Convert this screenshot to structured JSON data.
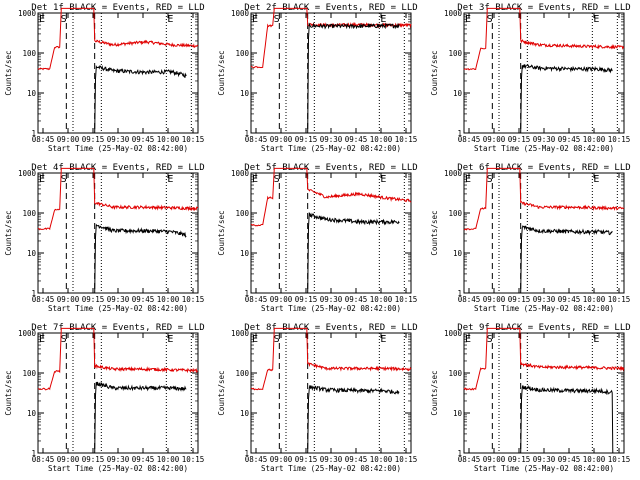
{
  "chart_data": {
    "type": "line",
    "time_axis": {
      "ticks": [
        "08:45",
        "09:00",
        "09:15",
        "09:30",
        "09:45",
        "10:00",
        "10:15"
      ],
      "xlabel": "Start Time (25-May-02 08:42:00)"
    },
    "y_axis": {
      "label": "Counts/sec",
      "scale": "log",
      "ylim": [
        1,
        1000
      ],
      "ticks": [
        "1",
        "10",
        "100",
        "1000"
      ]
    },
    "x_minutes_range": [
      0,
      96
    ],
    "vertical_markers": {
      "dashed_minutes": [
        17,
        34
      ],
      "dotted_minutes": [
        21,
        38,
        77,
        92
      ]
    },
    "event_marks": {
      "e_label": "E",
      "s_label": "S"
    },
    "colors": {
      "events": "#000000",
      "lld": "#e00000"
    },
    "panels": [
      {
        "title": "Det 1f BLACK = Events, RED = LLD",
        "e_marks_minutes": [
          0,
          77
        ],
        "s_mark_minute": 13,
        "lld": {
          "base": 40,
          "pre": 140,
          "post": [
            [
              34,
              200
            ],
            [
              45,
              160
            ],
            [
              65,
              190
            ],
            [
              80,
              160
            ],
            [
              96,
              150
            ]
          ]
        },
        "events": [
          [
            35,
            45
          ],
          [
            45,
            36
          ],
          [
            65,
            33
          ],
          [
            80,
            34
          ],
          [
            89,
            27
          ]
        ]
      },
      {
        "title": "Det 2f BLACK = Events, RED = LLD",
        "e_marks_minutes": [
          0,
          77
        ],
        "s_mark_minute": 13,
        "lld": {
          "base": 45,
          "pre": 480,
          "post": [
            [
              34,
              520
            ],
            [
              45,
              500
            ],
            [
              65,
              510
            ],
            [
              80,
              500
            ],
            [
              96,
              500
            ]
          ]
        },
        "events": [
          [
            35,
            480
          ],
          [
            45,
            470
          ],
          [
            65,
            470
          ],
          [
            80,
            480
          ],
          [
            89,
            480
          ]
        ]
      },
      {
        "title": "Det 3f BLACK = Events, RED = LLD",
        "e_marks_minutes": [
          0,
          77
        ],
        "s_mark_minute": 13,
        "lld": {
          "base": 40,
          "pre": 130,
          "post": [
            [
              34,
              200
            ],
            [
              45,
              160
            ],
            [
              65,
              150
            ],
            [
              80,
              145
            ],
            [
              96,
              140
            ]
          ]
        },
        "events": [
          [
            35,
            48
          ],
          [
            45,
            42
          ],
          [
            65,
            40
          ],
          [
            80,
            40
          ],
          [
            89,
            37
          ]
        ]
      },
      {
        "title": "Det 4f BLACK = Events, RED = LLD",
        "e_marks_minutes": [
          0,
          77
        ],
        "s_mark_minute": 13,
        "lld": {
          "base": 40,
          "pre": 120,
          "post": [
            [
              34,
              180
            ],
            [
              45,
              140
            ],
            [
              65,
              140
            ],
            [
              80,
              135
            ],
            [
              96,
              130
            ]
          ]
        },
        "events": [
          [
            35,
            50
          ],
          [
            45,
            36
          ],
          [
            65,
            36
          ],
          [
            80,
            34
          ],
          [
            89,
            28
          ]
        ]
      },
      {
        "title": "Det 5f BLACK = Events, RED = LLD",
        "e_marks_minutes": [
          0,
          77
        ],
        "s_mark_minute": 13,
        "lld": {
          "base": 50,
          "pre": 240,
          "post": [
            [
              34,
              380
            ],
            [
              45,
              250
            ],
            [
              65,
              300
            ],
            [
              80,
              240
            ],
            [
              96,
              200
            ]
          ]
        },
        "events": [
          [
            35,
            90
          ],
          [
            45,
            70
          ],
          [
            65,
            60
          ],
          [
            80,
            60
          ],
          [
            89,
            60
          ]
        ]
      },
      {
        "title": "Det 6f BLACK = Events, RED = LLD",
        "e_marks_minutes": [
          0,
          77
        ],
        "s_mark_minute": 13,
        "lld": {
          "base": 40,
          "pre": 130,
          "post": [
            [
              34,
              180
            ],
            [
              45,
              140
            ],
            [
              65,
              140
            ],
            [
              80,
              135
            ],
            [
              96,
              130
            ]
          ]
        },
        "events": [
          [
            35,
            45
          ],
          [
            45,
            36
          ],
          [
            65,
            34
          ],
          [
            80,
            34
          ],
          [
            89,
            32
          ]
        ]
      },
      {
        "title": "Det 7f BLACK = Events, RED = LLD",
        "e_marks_minutes": [
          0,
          77
        ],
        "s_mark_minute": 13,
        "lld": {
          "base": 40,
          "pre": 110,
          "post": [
            [
              34,
              150
            ],
            [
              45,
              125
            ],
            [
              65,
              125
            ],
            [
              80,
              120
            ],
            [
              96,
              115
            ]
          ]
        },
        "events": [
          [
            35,
            55
          ],
          [
            45,
            42
          ],
          [
            65,
            42
          ],
          [
            80,
            42
          ],
          [
            89,
            40
          ]
        ]
      },
      {
        "title": "Det 8f BLACK = Events, RED = LLD",
        "e_marks_minutes": [
          0,
          77
        ],
        "s_mark_minute": 13,
        "lld": {
          "base": 40,
          "pre": 120,
          "post": [
            [
              34,
              170
            ],
            [
              45,
              130
            ],
            [
              65,
              130
            ],
            [
              80,
              130
            ],
            [
              96,
              125
            ]
          ]
        },
        "events": [
          [
            35,
            45
          ],
          [
            45,
            38
          ],
          [
            65,
            36
          ],
          [
            80,
            36
          ],
          [
            89,
            33
          ]
        ]
      },
      {
        "title": "Det 9f BLACK = Events, RED = LLD",
        "e_marks_minutes": [
          0,
          77
        ],
        "s_mark_minute": 13,
        "lld": {
          "base": 40,
          "pre": 130,
          "post": [
            [
              34,
              170
            ],
            [
              45,
              140
            ],
            [
              65,
              140
            ],
            [
              80,
              135
            ],
            [
              96,
              130
            ]
          ]
        },
        "events": [
          [
            35,
            45
          ],
          [
            45,
            38
          ],
          [
            65,
            36
          ],
          [
            80,
            36
          ],
          [
            89,
            33
          ]
        ]
      }
    ]
  }
}
